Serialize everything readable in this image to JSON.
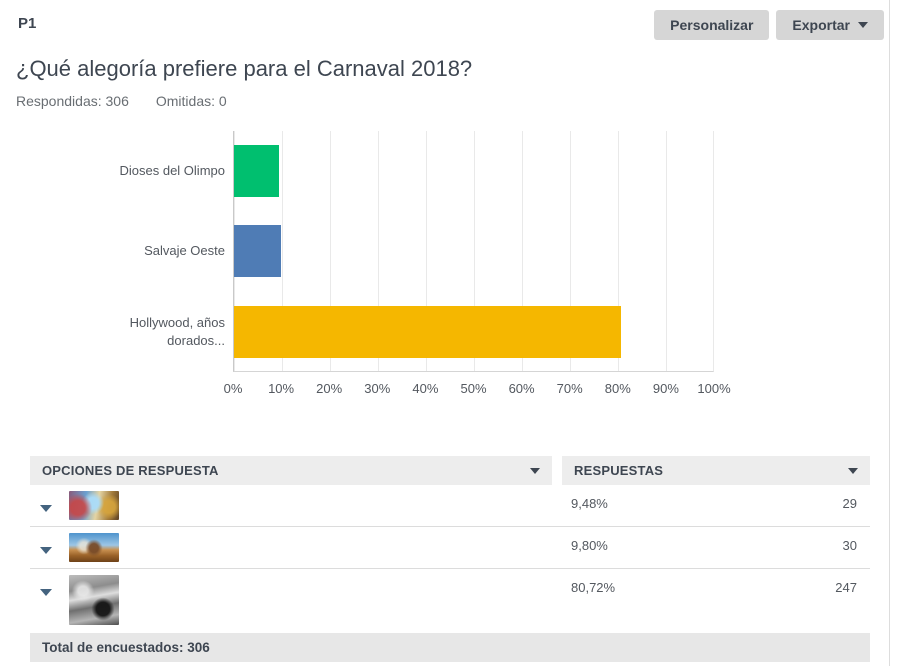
{
  "header": {
    "question_number": "P1",
    "customize_label": "Personalizar",
    "export_label": "Exportar",
    "title": "¿Qué alegoría prefiere para el Carnaval 2018?",
    "answered_label": "Respondidas: 306",
    "skipped_label": "Omitidas: 0"
  },
  "chart_data": {
    "type": "bar",
    "orientation": "horizontal",
    "categories": [
      "Dioses del Olimpo",
      "Salvaje Oeste",
      "Hollywood, años dorados..."
    ],
    "values": [
      9.48,
      9.8,
      80.72
    ],
    "colors": [
      "#00bf6f",
      "#4f7cb5",
      "#f5b700"
    ],
    "x_ticks": [
      "0%",
      "10%",
      "20%",
      "30%",
      "40%",
      "50%",
      "60%",
      "70%",
      "80%",
      "90%",
      "100%"
    ],
    "xlim": [
      0,
      100
    ],
    "grid": true,
    "legend": "none",
    "title": "",
    "xlabel": "",
    "ylabel": ""
  },
  "table": {
    "columns": {
      "options": "OPCIONES DE RESPUESTA",
      "responses": "RESPUESTAS"
    },
    "rows": [
      {
        "option_image": "dioses-del-olimpo-thumbnail",
        "percent": "9,48%",
        "count": "29"
      },
      {
        "option_image": "salvaje-oeste-thumbnail",
        "percent": "9,80%",
        "count": "30"
      },
      {
        "option_image": "hollywood-anos-dorados-thumbnail",
        "percent": "80,72%",
        "count": "247"
      }
    ],
    "footer": "Total de encuestados: 306"
  }
}
